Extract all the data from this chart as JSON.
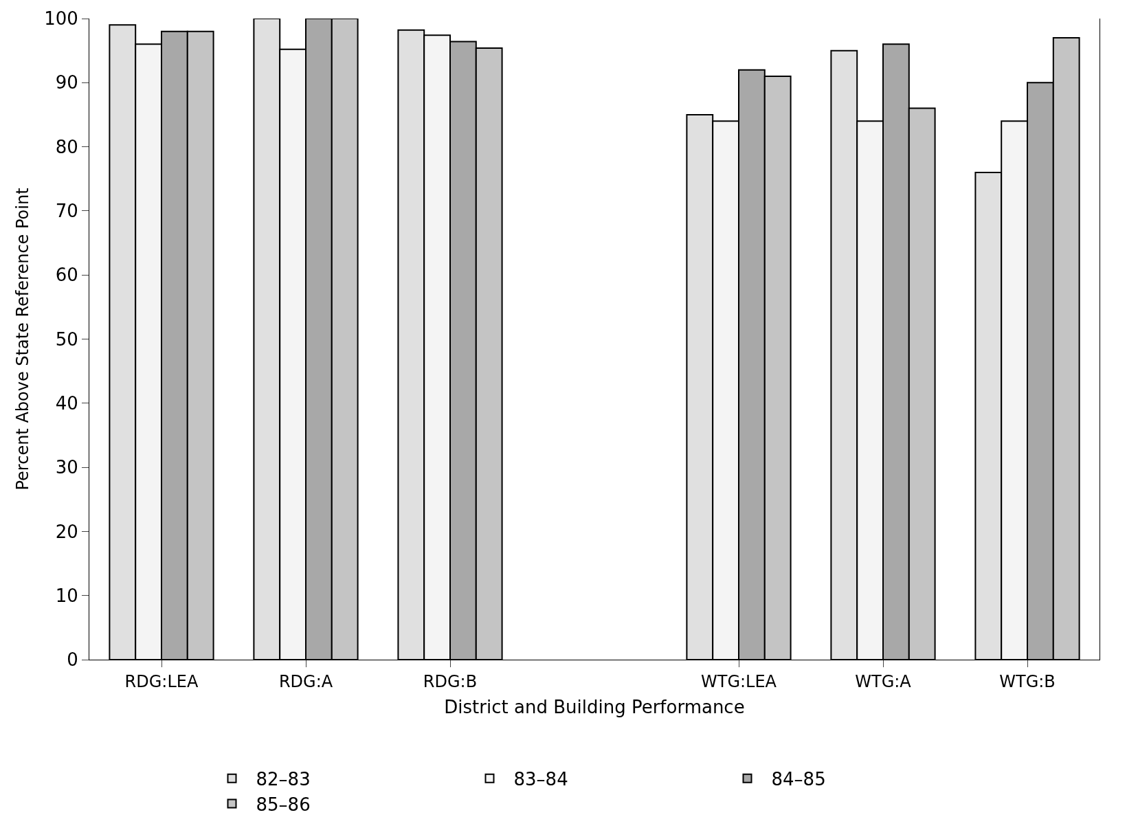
{
  "chart_data": {
    "type": "bar",
    "xlabel": "District and Building Performance",
    "ylabel": "Percent Above State Reference Point",
    "categories": [
      "RDG:LEA",
      "RDG:A",
      "RDG:B",
      null,
      "WTG:LEA",
      "WTG:A",
      "WTG:B"
    ],
    "series": [
      {
        "name": "82–83",
        "color": "#e0e0e0",
        "values": [
          99,
          100,
          98.2,
          null,
          85,
          95,
          76
        ]
      },
      {
        "name": "83–84",
        "color": "#f4f4f4",
        "values": [
          96,
          95.2,
          97.4,
          null,
          84,
          84,
          84
        ]
      },
      {
        "name": "84–85",
        "color": "#a8a8a8",
        "values": [
          98,
          100,
          96.4,
          null,
          92,
          96,
          90
        ]
      },
      {
        "name": "85–86",
        "color": "#c4c4c4",
        "values": [
          98,
          100,
          95.4,
          null,
          91,
          86,
          97
        ]
      }
    ],
    "ylim": [
      0,
      100
    ],
    "yticks": [
      0,
      10,
      20,
      30,
      40,
      50,
      60,
      70,
      80,
      90,
      100
    ],
    "grid": false,
    "legend": "bottom"
  }
}
